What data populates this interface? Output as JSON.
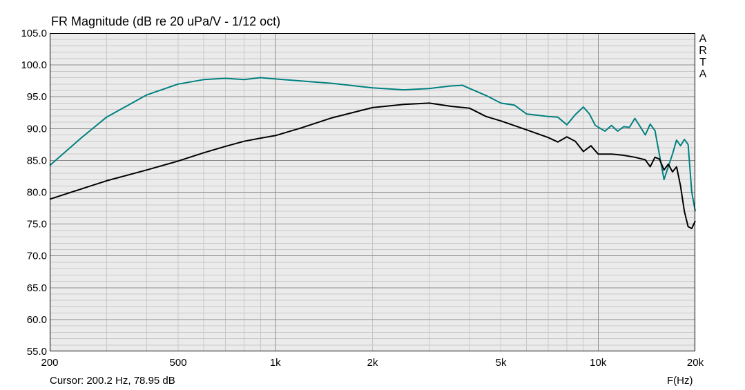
{
  "header": {
    "title": "FR Magnitude (dB re 20 uPa/V - 1/12 oct)"
  },
  "watermark": {
    "text": "ARTA"
  },
  "status": {
    "cursor": "Cursor: 200.2 Hz, 78.95 dB"
  },
  "chart_data": {
    "type": "line",
    "title": "FR Magnitude (dB re 20 uPa/V - 1/12 oct)",
    "xlabel": "F(Hz)",
    "ylabel": "",
    "xscale": "log",
    "xlim": [
      200,
      20000
    ],
    "ylim": [
      55,
      105
    ],
    "grid": true,
    "background": "#ebebeb",
    "y_ticks": [
      55,
      60,
      65,
      70,
      75,
      80,
      85,
      90,
      95,
      100,
      105
    ],
    "y_tick_labels": [
      "55.0",
      "60.0",
      "65.0",
      "70.0",
      "75.0",
      "80.0",
      "85.0",
      "90.0",
      "95.0",
      "100.0",
      "105.0"
    ],
    "x_ticks": [
      200,
      500,
      1000,
      2000,
      5000,
      10000,
      20000
    ],
    "x_tick_labels": [
      "200",
      "500",
      "1k",
      "2k",
      "5k",
      "10k",
      "20k"
    ],
    "series": [
      {
        "color": "#008080",
        "x": [
          200,
          250,
          300,
          400,
          500,
          600,
          700,
          800,
          900,
          1000,
          1200,
          1500,
          2000,
          2500,
          3000,
          3500,
          3800,
          4000,
          4500,
          5000,
          5500,
          6000,
          7000,
          7500,
          8000,
          8500,
          9000,
          9400,
          9800,
          10500,
          11000,
          11500,
          12000,
          12500,
          13000,
          13500,
          14000,
          14500,
          15000,
          15500,
          16000,
          17000,
          17500,
          18000,
          18500,
          19000,
          19500,
          20000
        ],
        "values": [
          84.2,
          88.5,
          91.8,
          95.3,
          97.0,
          97.7,
          97.9,
          97.7,
          98.0,
          97.8,
          97.5,
          97.1,
          96.4,
          96.1,
          96.3,
          96.7,
          96.8,
          96.3,
          95.2,
          94.0,
          93.7,
          92.3,
          91.9,
          91.8,
          90.6,
          92.2,
          93.4,
          92.3,
          90.5,
          89.6,
          90.5,
          89.6,
          90.3,
          90.2,
          91.6,
          90.3,
          89.0,
          90.7,
          89.7,
          85.8,
          82.0,
          86.0,
          88.2,
          87.3,
          88.3,
          87.5,
          80.0,
          77.0
        ]
      },
      {
        "color": "#000000",
        "x": [
          200,
          300,
          400,
          500,
          600,
          700,
          800,
          900,
          1000,
          1200,
          1500,
          2000,
          2500,
          3000,
          3200,
          3500,
          4000,
          4500,
          5000,
          6000,
          7000,
          7500,
          8000,
          8500,
          9000,
          9500,
          10000,
          11000,
          12000,
          13000,
          14000,
          14500,
          15000,
          15500,
          16000,
          16500,
          17000,
          17500,
          18000,
          18500,
          19000,
          19500,
          20000
        ],
        "values": [
          78.9,
          81.8,
          83.5,
          84.9,
          86.2,
          87.2,
          88.0,
          88.5,
          88.9,
          90.1,
          91.7,
          93.3,
          93.8,
          94.0,
          93.8,
          93.5,
          93.2,
          91.9,
          91.2,
          89.8,
          88.6,
          87.9,
          88.7,
          88.0,
          86.4,
          87.3,
          86.0,
          86.0,
          85.8,
          85.5,
          85.1,
          84.0,
          85.5,
          85.2,
          83.5,
          84.4,
          83.2,
          84.0,
          81.0,
          77.0,
          74.6,
          74.3,
          75.5
        ]
      }
    ]
  }
}
